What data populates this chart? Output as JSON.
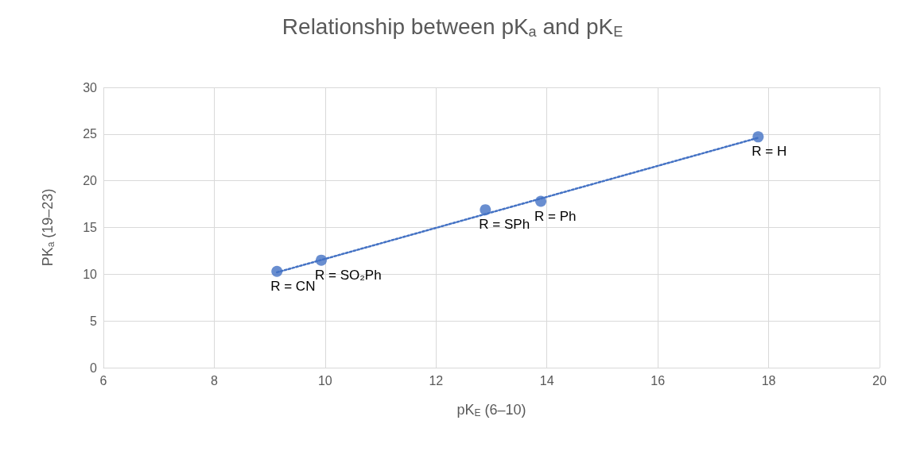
{
  "chart_data": {
    "type": "scatter",
    "title": "Relationship between pK$_{a}$ and pK$_{E}$",
    "xlabel": "pK$_{E}$ (6–10)",
    "ylabel": "PK$_{a}$ (19–23)",
    "xlim": [
      6,
      20
    ],
    "xticks": [
      6,
      8,
      10,
      12,
      14,
      16,
      18,
      20
    ],
    "ylim": [
      0,
      30
    ],
    "yticks": [
      0,
      5,
      10,
      15,
      20,
      25,
      30
    ],
    "grid": true,
    "marker": "circle",
    "series": [
      {
        "color": "#4472c4",
        "x": [
          9.13,
          9.93,
          12.89,
          13.89,
          17.81
        ],
        "values": [
          10.3,
          11.5,
          16.9,
          17.8,
          24.7
        ]
      },
      {
        "type": "line",
        "color": "#4472c4",
        "x": [
          9.13,
          17.81
        ],
        "values": [
          10.2,
          24.6
        ],
        "line_style": "dotted",
        "marker": "none"
      }
    ],
    "annotations": [
      {
        "text": "R = CN",
        "x": 9.13,
        "y": 10.3
      },
      {
        "text": "R = SO₂Ph",
        "x": 9.93,
        "y": 11.5
      },
      {
        "text": "R = SPh",
        "x": 12.89,
        "y": 16.9
      },
      {
        "text": "R = Ph",
        "x": 13.89,
        "y": 17.8
      },
      {
        "text": "R = H",
        "x": 17.81,
        "y": 24.7
      }
    ]
  }
}
